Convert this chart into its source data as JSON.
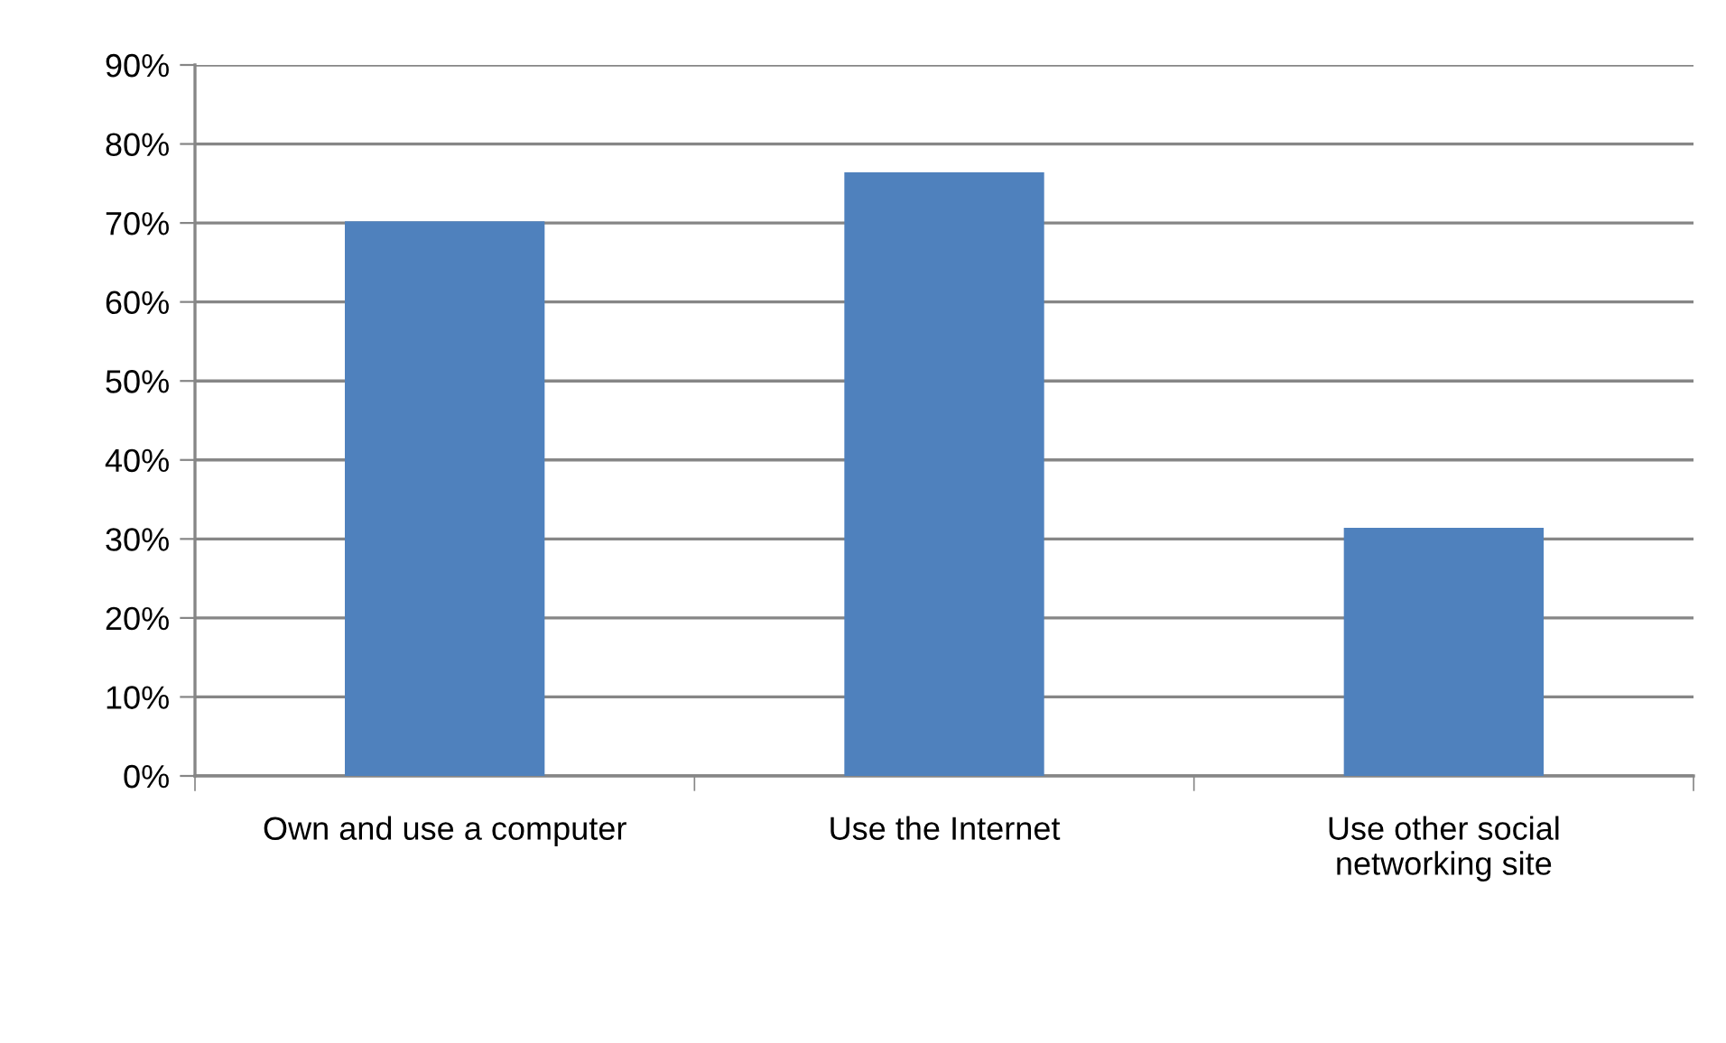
{
  "chart_data": {
    "type": "bar",
    "categories": [
      "Own and use a computer",
      "Use the Internet",
      "Use other social\nnetworking site"
    ],
    "values": [
      70.2,
      76.4,
      31.4
    ],
    "color": "#4f81bd",
    "ylim": [
      0,
      90
    ],
    "yticks": [
      {
        "value": 0,
        "label": "0%"
      },
      {
        "value": 10,
        "label": "10%"
      },
      {
        "value": 20,
        "label": "20%"
      },
      {
        "value": 30,
        "label": "30%"
      },
      {
        "value": 40,
        "label": "40%"
      },
      {
        "value": 50,
        "label": "50%"
      },
      {
        "value": 60,
        "label": "60%"
      },
      {
        "value": 70,
        "label": "70%"
      },
      {
        "value": 80,
        "label": "80%"
      },
      {
        "value": 90,
        "label": "90%"
      }
    ],
    "grid": "y"
  }
}
